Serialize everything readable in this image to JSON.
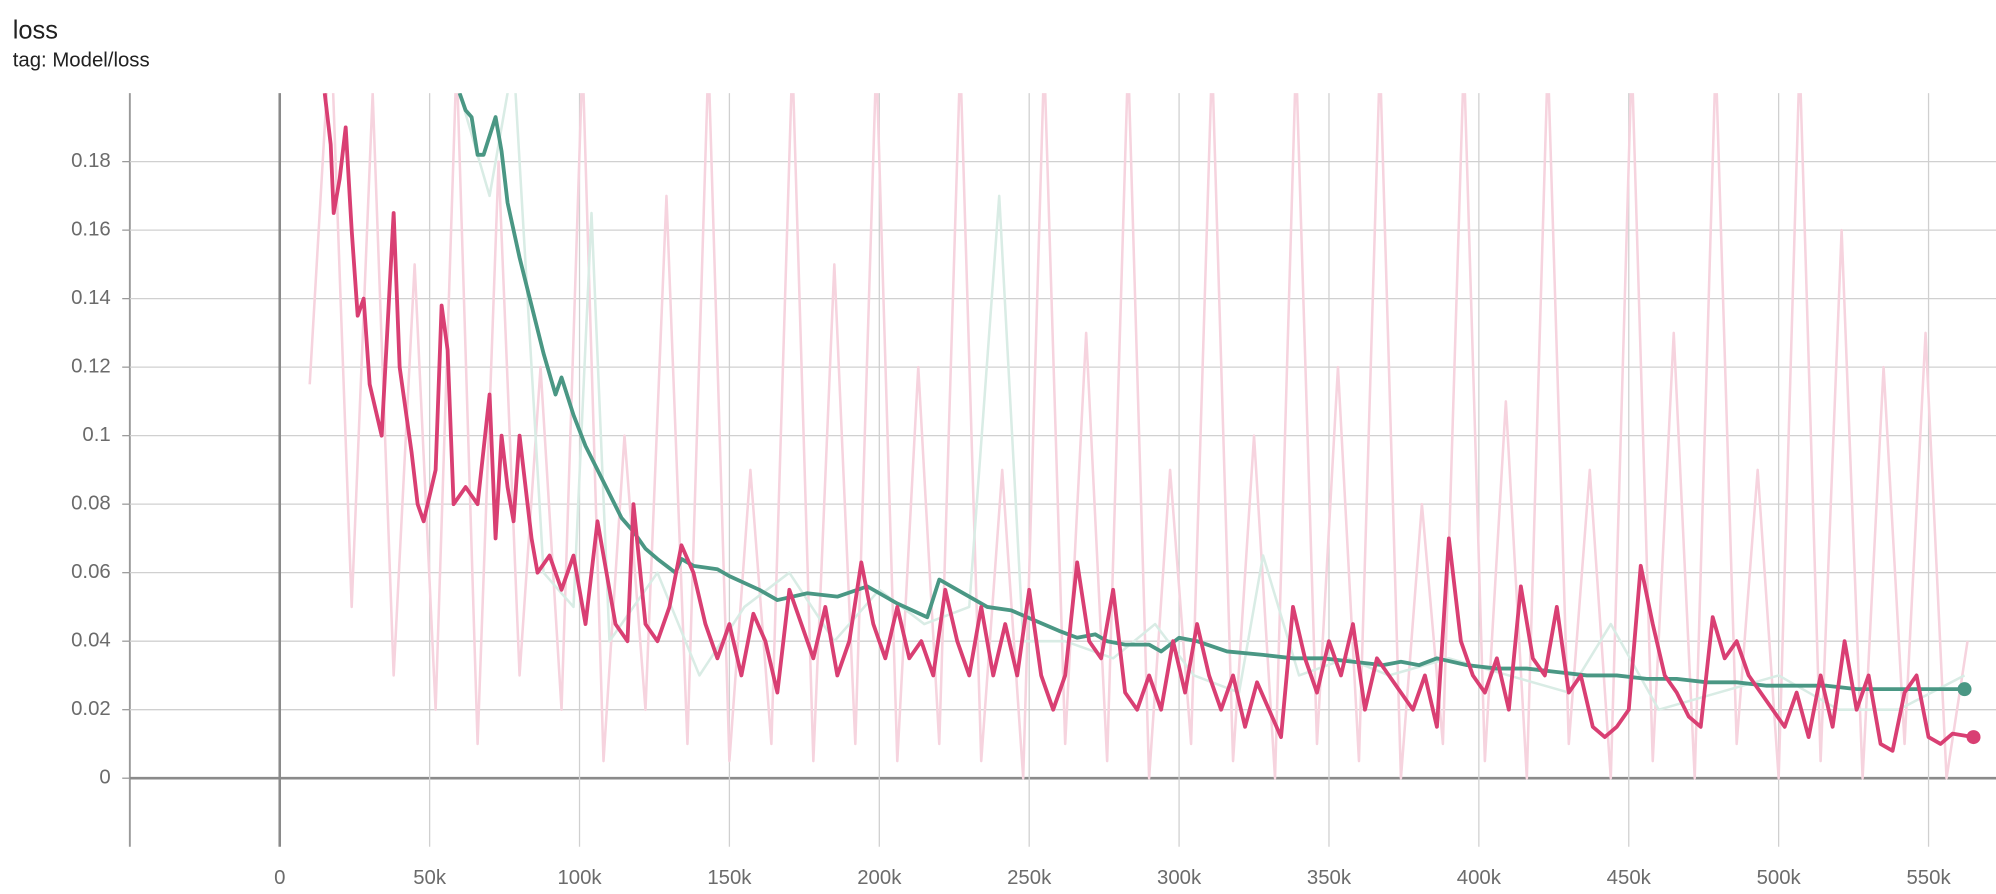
{
  "chart_data": {
    "type": "line",
    "title": "loss",
    "subtitle": "tag: Model/loss",
    "xlim": [
      -50000,
      572500
    ],
    "ylim": [
      -0.02,
      0.2
    ],
    "xticks": [
      0,
      {
        "value": 50000,
        "label": "50k"
      },
      {
        "value": 100000,
        "label": "100k"
      },
      {
        "value": 150000,
        "label": "150k"
      },
      {
        "value": 200000,
        "label": "200k"
      },
      {
        "value": 250000,
        "label": "250k"
      },
      {
        "value": 300000,
        "label": "300k"
      },
      {
        "value": 350000,
        "label": "350k"
      },
      {
        "value": 400000,
        "label": "400k"
      },
      {
        "value": 450000,
        "label": "450k"
      },
      {
        "value": 500000,
        "label": "500k"
      },
      {
        "value": 550000,
        "label": "550k"
      }
    ],
    "yticks": [
      0,
      0.02,
      0.04,
      0.06,
      0.08,
      0.1,
      0.12,
      0.14,
      0.16,
      0.18
    ],
    "grid": true,
    "series": [
      {
        "color": "#f6d3de",
        "width": 2,
        "x": [
          10000,
          17000,
          24000,
          31000,
          38000,
          45000,
          52000,
          59000,
          66000,
          73000,
          80000,
          87000,
          94000,
          101000,
          108000,
          115000,
          122000,
          129000,
          136000,
          143000,
          150000,
          157000,
          164000,
          171000,
          178000,
          185000,
          192000,
          199000,
          206000,
          213000,
          220000,
          227000,
          234000,
          241000,
          248000,
          255000,
          262000,
          269000,
          276000,
          283000,
          290000,
          297000,
          304000,
          311000,
          318000,
          325000,
          332000,
          339000,
          346000,
          353000,
          360000,
          367000,
          374000,
          381000,
          388000,
          395000,
          402000,
          409000,
          416000,
          423000,
          430000,
          437000,
          444000,
          451000,
          458000,
          465000,
          472000,
          479000,
          486000,
          493000,
          500000,
          507000,
          514000,
          521000,
          528000,
          535000,
          542000,
          549000,
          556000,
          563000
        ],
        "values": [
          0.115,
          0.22,
          0.05,
          0.2,
          0.03,
          0.15,
          0.02,
          0.21,
          0.01,
          0.18,
          0.03,
          0.12,
          0.02,
          0.21,
          0.005,
          0.1,
          0.02,
          0.17,
          0.01,
          0.21,
          0.005,
          0.09,
          0.01,
          0.21,
          0.005,
          0.15,
          0.01,
          0.21,
          0.005,
          0.12,
          0.01,
          0.21,
          0.005,
          0.09,
          0.0,
          0.21,
          0.01,
          0.13,
          0.005,
          0.21,
          0.0,
          0.09,
          0.01,
          0.21,
          0.005,
          0.1,
          0.0,
          0.21,
          0.01,
          0.12,
          0.005,
          0.21,
          0.0,
          0.08,
          0.01,
          0.21,
          0.005,
          0.11,
          0.0,
          0.21,
          0.01,
          0.09,
          0.0,
          0.21,
          0.005,
          0.13,
          0.0,
          0.21,
          0.01,
          0.09,
          0.0,
          0.21,
          0.005,
          0.16,
          0.0,
          0.12,
          0.01,
          0.13,
          0.0,
          0.04
        ]
      },
      {
        "color": "#d9ece5",
        "width": 2,
        "x": [
          60000,
          70000,
          78000,
          88000,
          98000,
          104000,
          110000,
          126000,
          140000,
          155000,
          170000,
          185000,
          200000,
          215000,
          230000,
          240000,
          248000,
          262000,
          278000,
          292000,
          305000,
          320000,
          328000,
          340000,
          356000,
          370000,
          390000,
          410000,
          430000,
          444000,
          460000,
          480000,
          500000,
          520000,
          540000,
          562000
        ],
        "values": [
          0.2,
          0.17,
          0.21,
          0.06,
          0.05,
          0.165,
          0.04,
          0.06,
          0.03,
          0.05,
          0.06,
          0.04,
          0.055,
          0.045,
          0.05,
          0.17,
          0.04,
          0.04,
          0.035,
          0.045,
          0.03,
          0.025,
          0.065,
          0.03,
          0.035,
          0.03,
          0.035,
          0.03,
          0.025,
          0.045,
          0.02,
          0.025,
          0.03,
          0.02,
          0.02,
          0.03
        ]
      },
      {
        "color": "#4a9784",
        "width": 3,
        "marker_last": true,
        "x": [
          60000,
          62000,
          64000,
          66000,
          68000,
          72000,
          74000,
          76000,
          80000,
          84000,
          88000,
          92000,
          94000,
          98000,
          102000,
          106000,
          110000,
          114000,
          118000,
          122000,
          126000,
          132000,
          134000,
          138000,
          146000,
          150000,
          160000,
          166000,
          176000,
          186000,
          196000,
          206000,
          216000,
          220000,
          226000,
          232000,
          236000,
          244000,
          252000,
          260000,
          266000,
          272000,
          276000,
          282000,
          290000,
          294000,
          300000,
          306000,
          316000,
          328000,
          338000,
          348000,
          358000,
          368000,
          374000,
          380000,
          386000,
          396000,
          406000,
          416000,
          426000,
          436000,
          446000,
          456000,
          466000,
          476000,
          486000,
          496000,
          506000,
          516000,
          526000,
          536000,
          546000,
          556000,
          562000
        ],
        "values": [
          0.2,
          0.195,
          0.193,
          0.182,
          0.182,
          0.193,
          0.183,
          0.168,
          0.152,
          0.138,
          0.124,
          0.112,
          0.117,
          0.106,
          0.097,
          0.09,
          0.083,
          0.076,
          0.072,
          0.067,
          0.064,
          0.06,
          0.064,
          0.062,
          0.061,
          0.059,
          0.055,
          0.052,
          0.054,
          0.053,
          0.056,
          0.051,
          0.047,
          0.058,
          0.055,
          0.052,
          0.05,
          0.049,
          0.046,
          0.043,
          0.041,
          0.042,
          0.04,
          0.039,
          0.039,
          0.037,
          0.041,
          0.04,
          0.037,
          0.036,
          0.035,
          0.035,
          0.034,
          0.033,
          0.034,
          0.033,
          0.035,
          0.033,
          0.032,
          0.032,
          0.031,
          0.03,
          0.03,
          0.029,
          0.029,
          0.028,
          0.028,
          0.027,
          0.027,
          0.027,
          0.026,
          0.026,
          0.026,
          0.026,
          0.026
        ]
      },
      {
        "color": "#d93f73",
        "width": 3,
        "marker_last": true,
        "x": [
          15000,
          17000,
          18000,
          20000,
          22000,
          24000,
          26000,
          28000,
          30000,
          34000,
          38000,
          40000,
          44000,
          46000,
          48000,
          52000,
          54000,
          56000,
          58000,
          62000,
          66000,
          70000,
          72000,
          74000,
          76000,
          78000,
          80000,
          84000,
          86000,
          90000,
          94000,
          98000,
          102000,
          106000,
          110000,
          112000,
          116000,
          118000,
          122000,
          126000,
          130000,
          134000,
          138000,
          142000,
          146000,
          150000,
          154000,
          158000,
          162000,
          166000,
          170000,
          174000,
          178000,
          182000,
          186000,
          190000,
          194000,
          198000,
          202000,
          206000,
          210000,
          214000,
          218000,
          222000,
          226000,
          230000,
          234000,
          238000,
          242000,
          246000,
          250000,
          254000,
          258000,
          262000,
          266000,
          270000,
          274000,
          278000,
          282000,
          286000,
          290000,
          294000,
          298000,
          302000,
          306000,
          310000,
          314000,
          318000,
          322000,
          326000,
          330000,
          334000,
          338000,
          342000,
          346000,
          350000,
          354000,
          358000,
          362000,
          366000,
          370000,
          374000,
          378000,
          382000,
          386000,
          390000,
          394000,
          398000,
          402000,
          406000,
          410000,
          414000,
          418000,
          422000,
          426000,
          430000,
          434000,
          438000,
          442000,
          446000,
          450000,
          454000,
          458000,
          462000,
          466000,
          470000,
          474000,
          478000,
          482000,
          486000,
          490000,
          494000,
          498000,
          502000,
          506000,
          510000,
          514000,
          518000,
          522000,
          526000,
          530000,
          534000,
          538000,
          542000,
          546000,
          550000,
          554000,
          558000,
          565000
        ],
        "values": [
          0.2,
          0.185,
          0.165,
          0.175,
          0.19,
          0.16,
          0.135,
          0.14,
          0.115,
          0.1,
          0.165,
          0.12,
          0.095,
          0.08,
          0.075,
          0.09,
          0.138,
          0.125,
          0.08,
          0.085,
          0.08,
          0.112,
          0.07,
          0.1,
          0.085,
          0.075,
          0.1,
          0.07,
          0.06,
          0.065,
          0.055,
          0.065,
          0.045,
          0.075,
          0.055,
          0.045,
          0.04,
          0.08,
          0.045,
          0.04,
          0.05,
          0.068,
          0.06,
          0.045,
          0.035,
          0.045,
          0.03,
          0.048,
          0.04,
          0.025,
          0.055,
          0.045,
          0.035,
          0.05,
          0.03,
          0.04,
          0.063,
          0.045,
          0.035,
          0.05,
          0.035,
          0.04,
          0.03,
          0.055,
          0.04,
          0.03,
          0.05,
          0.03,
          0.045,
          0.03,
          0.055,
          0.03,
          0.02,
          0.03,
          0.063,
          0.04,
          0.035,
          0.055,
          0.025,
          0.02,
          0.03,
          0.02,
          0.04,
          0.025,
          0.045,
          0.03,
          0.02,
          0.03,
          0.015,
          0.028,
          0.02,
          0.012,
          0.05,
          0.035,
          0.025,
          0.04,
          0.03,
          0.045,
          0.02,
          0.035,
          0.03,
          0.025,
          0.02,
          0.03,
          0.015,
          0.07,
          0.04,
          0.03,
          0.025,
          0.035,
          0.02,
          0.056,
          0.035,
          0.03,
          0.05,
          0.025,
          0.03,
          0.015,
          0.012,
          0.015,
          0.02,
          0.062,
          0.045,
          0.03,
          0.025,
          0.018,
          0.015,
          0.047,
          0.035,
          0.04,
          0.03,
          0.025,
          0.02,
          0.015,
          0.025,
          0.012,
          0.03,
          0.015,
          0.04,
          0.02,
          0.03,
          0.01,
          0.008,
          0.025,
          0.03,
          0.012,
          0.01,
          0.013,
          0.012
        ]
      }
    ]
  }
}
